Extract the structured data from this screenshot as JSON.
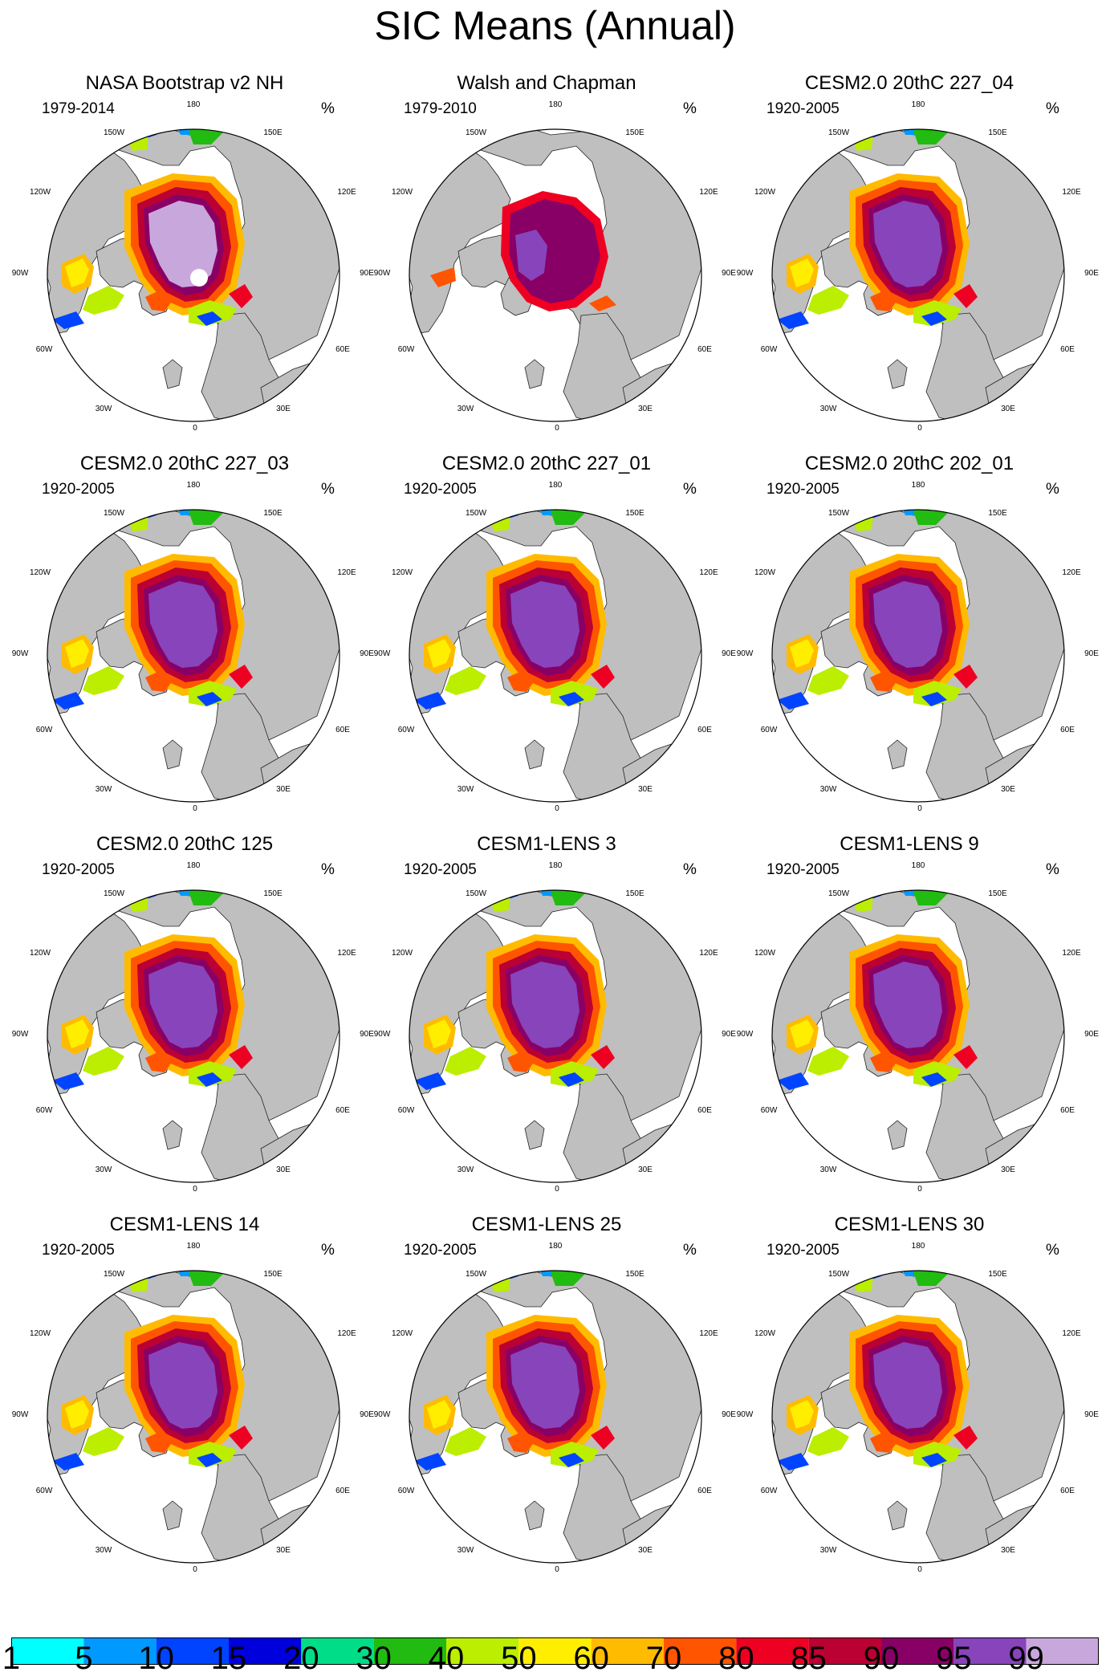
{
  "title": "SIC Means (Annual)",
  "units_label": "%",
  "graticule_labels": [
    "180",
    "150W",
    "150E",
    "120W",
    "120E",
    "90W",
    "90E",
    "60W",
    "60E",
    "30W",
    "30E",
    "0"
  ],
  "panels": [
    {
      "title": "NASA Bootstrap v2 NH",
      "period": "1979-2014",
      "style": "obs_bootstrap"
    },
    {
      "title": "Walsh and Chapman",
      "period": "1979-2010",
      "style": "obs_walsh"
    },
    {
      "title": "CESM2.0 20thC 227_04",
      "period": "1920-2005",
      "style": "model"
    },
    {
      "title": "CESM2.0 20thC 227_03",
      "period": "1920-2005",
      "style": "model"
    },
    {
      "title": "CESM2.0 20thC 227_01",
      "period": "1920-2005",
      "style": "model"
    },
    {
      "title": "CESM2.0 20thC 202_01",
      "period": "1920-2005",
      "style": "model"
    },
    {
      "title": "CESM2.0 20thC 125",
      "period": "1920-2005",
      "style": "model"
    },
    {
      "title": "CESM1-LENS 3",
      "period": "1920-2005",
      "style": "model"
    },
    {
      "title": "CESM1-LENS 9",
      "period": "1920-2005",
      "style": "model"
    },
    {
      "title": "CESM1-LENS 14",
      "period": "1920-2005",
      "style": "model"
    },
    {
      "title": "CESM1-LENS 25",
      "period": "1920-2005",
      "style": "model"
    },
    {
      "title": "CESM1-LENS 30",
      "period": "1920-2005",
      "style": "model"
    }
  ],
  "colorbar": {
    "labels": [
      "1",
      "5",
      "10",
      "15",
      "20",
      "30",
      "40",
      "50",
      "60",
      "70",
      "80",
      "85",
      "90",
      "95",
      "99"
    ],
    "colors": [
      "#00ffff",
      "#0099ff",
      "#0044ff",
      "#0000dd",
      "#00dd88",
      "#22bb11",
      "#bbee00",
      "#ffee00",
      "#ffbb00",
      "#ff5500",
      "#ee0022",
      "#bb0033",
      "#880066",
      "#8844bb",
      "#c8a8dc"
    ]
  },
  "colors": {
    "land": "#bfbfbf",
    "ocean": "#ffffff"
  }
}
